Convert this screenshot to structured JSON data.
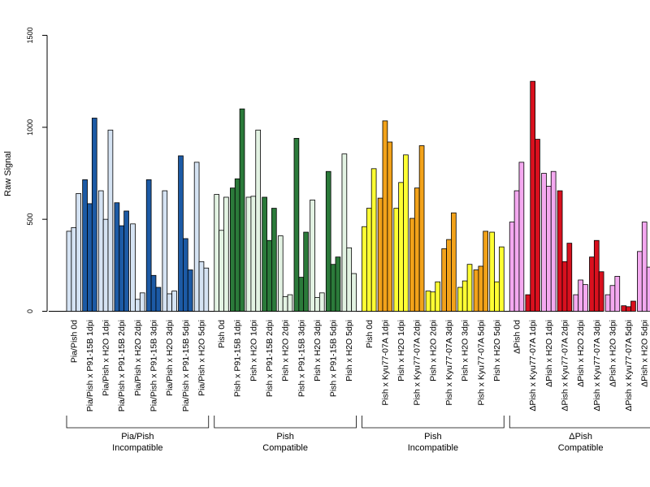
{
  "chart_data": {
    "type": "bar",
    "ylabel": "Raw Signal",
    "ylim": [
      0,
      1500
    ],
    "yticks": [
      0,
      500,
      1000,
      1500
    ],
    "grid": false,
    "groups": [
      {
        "label": "Pia/Pish\nIncompatible",
        "conditions": [
          {
            "label": "Pia/Pish 0d",
            "color": "#d5e3f3",
            "values": [
              435,
              455,
              640
            ]
          },
          {
            "label": "Pia/Pish x P91-15B 1dpi",
            "color": "#1c5aa5",
            "values": [
              715,
              585,
              1050
            ]
          },
          {
            "label": "Pia/Pish x H2O 1dpi",
            "color": "#d5e3f3",
            "values": [
              655,
              500,
              985
            ]
          },
          {
            "label": "Pia/Pish x P91-15B 2dpi",
            "color": "#1c5aa5",
            "values": [
              590,
              465,
              545
            ]
          },
          {
            "label": "Pia/Pish x H2O 2dpi",
            "color": "#d5e3f3",
            "values": [
              475,
              65,
              100
            ]
          },
          {
            "label": "Pia/Pish x P91-15B 3dpi",
            "color": "#1c5aa5",
            "values": [
              715,
              195,
              130
            ]
          },
          {
            "label": "Pia/Pish x H2O 3dpi",
            "color": "#d5e3f3",
            "values": [
              655,
              95,
              110
            ]
          },
          {
            "label": "Pia/Pish x P91-15B 5dpi",
            "color": "#1c5aa5",
            "values": [
              845,
              395,
              225
            ]
          },
          {
            "label": "Pia/Pish x H2O 5dpi",
            "color": "#d5e3f3",
            "values": [
              810,
              270,
              235
            ]
          }
        ]
      },
      {
        "label": "Pish\nCompatible",
        "conditions": [
          {
            "label": "Pish 0d",
            "color": "#e3f3e3",
            "values": [
              635,
              440,
              620
            ]
          },
          {
            "label": "Pish x P91-15B 1dpi",
            "color": "#2b7a3a",
            "values": [
              670,
              720,
              1100
            ]
          },
          {
            "label": "Pish x H2O 1dpi",
            "color": "#e3f3e3",
            "values": [
              620,
              625,
              985
            ]
          },
          {
            "label": "Pish x P91-15B 2dpi",
            "color": "#2b7a3a",
            "values": [
              620,
              385,
              560
            ]
          },
          {
            "label": "Pish x H2O 2dpi",
            "color": "#e3f3e3",
            "values": [
              410,
              80,
              90
            ]
          },
          {
            "label": "Pish x P91-15B 3dpi",
            "color": "#2b7a3a",
            "values": [
              940,
              185,
              430
            ]
          },
          {
            "label": "Pish x H2O 3dpi",
            "color": "#e3f3e3",
            "values": [
              605,
              75,
              100
            ]
          },
          {
            "label": "Pish x P91-15B 5dpi",
            "color": "#2b7a3a",
            "values": [
              760,
              255,
              295
            ]
          },
          {
            "label": "Pish x H2O 5dpi",
            "color": "#e3f3e3",
            "values": [
              855,
              345,
              205
            ]
          }
        ]
      },
      {
        "label": "Pish\nIncompatible",
        "conditions": [
          {
            "label": "Pish 0d",
            "color": "#ffff33",
            "values": [
              460,
              560,
              775
            ]
          },
          {
            "label": "Pish x Kyu77-07A 1dpi",
            "color": "#f2a21a",
            "values": [
              615,
              1035,
              920
            ]
          },
          {
            "label": "Pish x H2O 1dpi",
            "color": "#ffff33",
            "values": [
              560,
              700,
              850
            ]
          },
          {
            "label": "Pish x Kyu77-07A 2dpi",
            "color": "#f2a21a",
            "values": [
              505,
              670,
              900
            ]
          },
          {
            "label": "Pish x H2O 2dpi",
            "color": "#ffff33",
            "values": [
              110,
              105,
              160
            ]
          },
          {
            "label": "Pish x Kyu77-07A 3dpi",
            "color": "#f2a21a",
            "values": [
              340,
              390,
              535
            ]
          },
          {
            "label": "Pish x H2O 3dpi",
            "color": "#ffff33",
            "values": [
              130,
              165,
              255
            ]
          },
          {
            "label": "Pish x Kyu77-07A 5dpi",
            "color": "#f2a21a",
            "values": [
              225,
              245,
              435
            ]
          },
          {
            "label": "Pish x H2O 5dpi",
            "color": "#ffff33",
            "values": [
              430,
              160,
              350
            ]
          }
        ]
      },
      {
        "label": "ΔPish\nCompatible",
        "conditions": [
          {
            "label": "ΔPish 0d",
            "color": "#f4a9f0",
            "values": [
              485,
              655,
              810
            ]
          },
          {
            "label": "ΔPish x Kyu77-07A 1dpi",
            "color": "#d9101e",
            "values": [
              90,
              1250,
              935
            ]
          },
          {
            "label": "ΔPish x H2O 1dpi",
            "color": "#f4a9f0",
            "values": [
              750,
              680,
              760
            ]
          },
          {
            "label": "ΔPish x Kyu77-07A 2dpi",
            "color": "#d9101e",
            "values": [
              655,
              270,
              370
            ]
          },
          {
            "label": "ΔPish x H2O 2dpi",
            "color": "#f4a9f0",
            "values": [
              90,
              170,
              145
            ]
          },
          {
            "label": "ΔPish x Kyu77-07A 3dpi",
            "color": "#d9101e",
            "values": [
              295,
              385,
              215
            ]
          },
          {
            "label": "ΔPish x H2O 3dpi",
            "color": "#f4a9f0",
            "values": [
              90,
              140,
              190
            ]
          },
          {
            "label": "ΔPish x Kyu77-07A 5dpi",
            "color": "#d9101e",
            "values": [
              30,
              25,
              55
            ]
          },
          {
            "label": "ΔPish x H2O 5dpi",
            "color": "#f4a9f0",
            "values": [
              325,
              485,
              240
            ]
          }
        ]
      }
    ]
  }
}
